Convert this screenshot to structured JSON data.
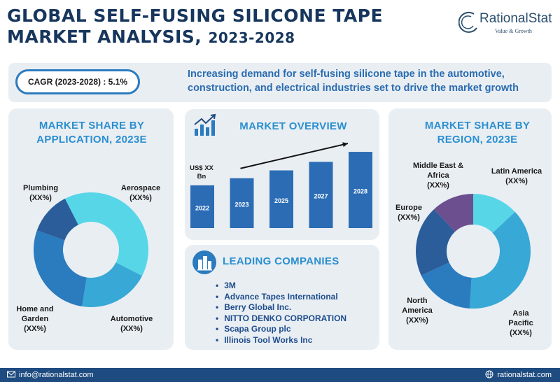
{
  "header": {
    "title_line1": "GLOBAL SELF-FUSING SILICONE TAPE",
    "title_line2a": "MARKET ANALYSIS, ",
    "title_line2b": "2023-2028",
    "logo_name": "RationalStat",
    "logo_tagline": "Value & Growth"
  },
  "banner": {
    "cagr": "CAGR (2023-2028) : 5.1%",
    "text": "Increasing demand for self-fusing silicone tape in the automotive, construction, and electrical industries set to drive the market growth"
  },
  "application": {
    "title": "MARKET SHARE BY APPLICATION, 2023E",
    "labels": {
      "plumbing": "Plumbing\n(XX%)",
      "aerospace": "Aerospace\n(XX%)",
      "home": "Home and\nGarden\n(XX%)",
      "automotive": "Automotive\n(XX%)"
    }
  },
  "overview": {
    "title": "MARKET OVERVIEW",
    "unit": "US$ XX Bn"
  },
  "companies": {
    "title": "LEADING COMPANIES",
    "items": [
      "3M",
      "Advance Tapes International",
      "Berry Global Inc.",
      "NITTO DENKO CORPORATION",
      "Scapa Group plc",
      "Illinois Tool Works Inc"
    ]
  },
  "region": {
    "title": "MARKET SHARE BY REGION, 2023E",
    "labels": {
      "mea": "Middle East &\nAfrica\n(XX%)",
      "latam": "Latin America\n(XX%)",
      "europe": "Europe\n(XX%)",
      "na": "North\nAmerica\n(XX%)",
      "apac": "Asia\nPacific\n(XX%)"
    }
  },
  "footer": {
    "email": "info@rationalstat.com",
    "site": "rationalstat.com"
  },
  "colors": {
    "dark_navy": "#1f4c80",
    "mid_blue": "#2b7bbf",
    "light_cyan": "#57d6e8",
    "navy": "#2a5d9a",
    "purple": "#6b4f8f"
  },
  "chart_data": [
    {
      "type": "pie",
      "title": "MARKET SHARE BY APPLICATION, 2023E",
      "categories": [
        "Aerospace",
        "Automotive",
        "Home and Garden",
        "Plumbing"
      ],
      "values": [
        40,
        20,
        28,
        12
      ],
      "colors": [
        "#57d6e8",
        "#38a8d6",
        "#2b7bbf",
        "#2a5d9a"
      ],
      "donut": true
    },
    {
      "type": "bar",
      "title": "MARKET OVERVIEW",
      "categories": [
        "2022",
        "2023",
        "2025",
        "2027",
        "2028"
      ],
      "values": [
        60,
        70,
        81,
        93,
        107
      ],
      "ylabel": "US$ XX Bn",
      "trend_arrow": true
    },
    {
      "type": "pie",
      "title": "MARKET SHARE BY REGION, 2023E",
      "categories": [
        "Latin America",
        "Asia Pacific",
        "North America",
        "Europe",
        "Middle East & Africa"
      ],
      "values": [
        13,
        38,
        17,
        20,
        12
      ],
      "colors": [
        "#57d6e8",
        "#38a8d6",
        "#2b7bbf",
        "#2a5d9a",
        "#6b4f8f"
      ],
      "donut": true
    }
  ]
}
